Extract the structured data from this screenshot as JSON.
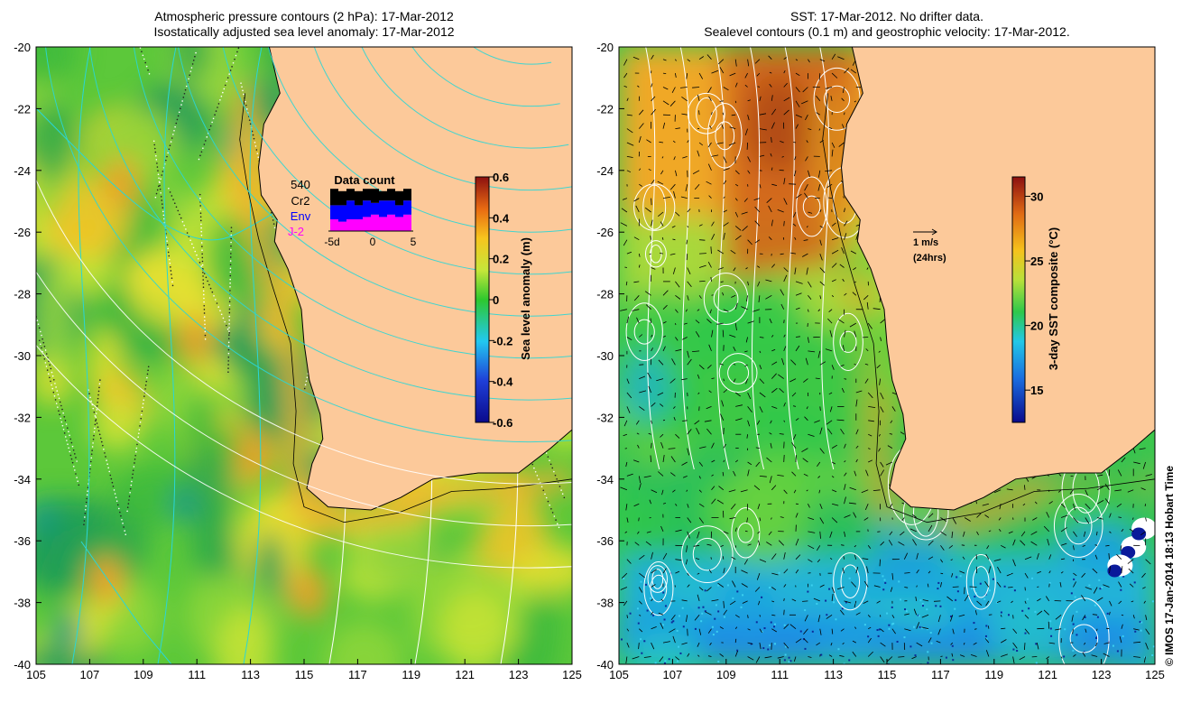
{
  "left_panel": {
    "title_line1": "Atmospheric pressure contours (2 hPa): 17-Mar-2012",
    "title_line2": "Isostatically adjusted sea level anomaly: 17-Mar-2012",
    "colorbar": {
      "label": "Sea level anomaly (m)",
      "ticks": [
        "0.6",
        "0.4",
        "0.2",
        "0",
        "-0.2",
        "-0.4",
        "-0.6"
      ],
      "range": [
        -0.6,
        0.6
      ]
    },
    "data_count": {
      "title": "Data count",
      "total": "540",
      "missions": [
        {
          "name": "Cr2",
          "color": "#000000"
        },
        {
          "name": "Env",
          "color": "#0000ff"
        },
        {
          "name": "J-2",
          "color": "#ff00ff"
        }
      ],
      "axis_ticks": [
        "-5d",
        "0",
        "5"
      ],
      "bars": [
        {
          "black": 0.35,
          "blue": 0.3,
          "magenta": 0.25
        },
        {
          "black": 0.3,
          "blue": 0.35,
          "magenta": 0.2
        },
        {
          "black": 0.25,
          "blue": 0.4,
          "magenta": 0.25
        },
        {
          "black": 0.3,
          "blue": 0.3,
          "magenta": 0.25
        },
        {
          "black": 0.25,
          "blue": 0.35,
          "magenta": 0.3
        },
        {
          "black": 0.3,
          "blue": 0.25,
          "magenta": 0.35
        },
        {
          "black": 0.2,
          "blue": 0.35,
          "magenta": 0.3
        },
        {
          "black": 0.25,
          "blue": 0.3,
          "magenta": 0.35
        },
        {
          "black": 0.3,
          "blue": 0.25,
          "magenta": 0.3
        },
        {
          "black": 0.25,
          "blue": 0.3,
          "magenta": 0.35
        }
      ]
    }
  },
  "right_panel": {
    "title_line1": "SST: 17-Mar-2012. No drifter data.",
    "title_line2": "Sealevel contours (0.1 m) and geostrophic velocity: 17-Mar-2012.",
    "colorbar": {
      "label": "3-day SST composite (°C)",
      "ticks": [
        "30",
        "25",
        "20",
        "15"
      ],
      "range": [
        12.5,
        31.5
      ]
    },
    "velocity_key": {
      "speed": "1 m/s",
      "duration": "(24hrs)"
    }
  },
  "axes": {
    "x_ticks": [
      "105",
      "107",
      "109",
      "111",
      "113",
      "115",
      "117",
      "119",
      "121",
      "123",
      "125"
    ],
    "y_ticks": [
      "-20",
      "-22",
      "-24",
      "-26",
      "-28",
      "-30",
      "-32",
      "-34",
      "-36",
      "-38",
      "-40"
    ],
    "xlim": [
      105,
      125
    ],
    "ylim": [
      -40,
      -20
    ]
  },
  "credit": "© IMOS 17-Jan-2014 18:13 Hobart Time",
  "colors": {
    "land": "#fcc99a",
    "pressure_contour": "#2ad6d6",
    "sealevel_contour": "#ffffff",
    "coast": "#000000"
  }
}
